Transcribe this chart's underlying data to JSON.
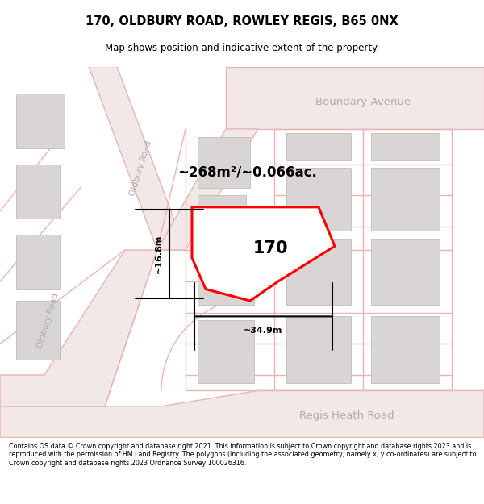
{
  "title": "170, OLDBURY ROAD, ROWLEY REGIS, B65 0NX",
  "subtitle": "Map shows position and indicative extent of the property.",
  "footer": "Contains OS data © Crown copyright and database right 2021. This information is subject to Crown copyright and database rights 2023 and is reproduced with the permission of HM Land Registry. The polygons (including the associated geometry, namely x, y co-ordinates) are subject to Crown copyright and database rights 2023 Ordnance Survey 100026316.",
  "map_bg": "#f7f6f6",
  "road_line_color": "#e8b4b4",
  "road_fill_color": "#f2e8e8",
  "building_color": "#d9d5d4",
  "building_border": "#c0bcba",
  "highlight_color": "#ff0000",
  "highlight_fill": "#ffffff",
  "road_label_color": "#b0acac",
  "area_text": "~268m²/~0.066ac.",
  "label_170": "170",
  "dim_width": "~34.9m",
  "dim_height": "~16.8m",
  "road_label_boundary": "Boundary Avenue",
  "road_label_regis": "Regis Heath Road",
  "road_label_oldbury": "Oldbury Road",
  "road_label_oldbury2": "Oldbury Road"
}
